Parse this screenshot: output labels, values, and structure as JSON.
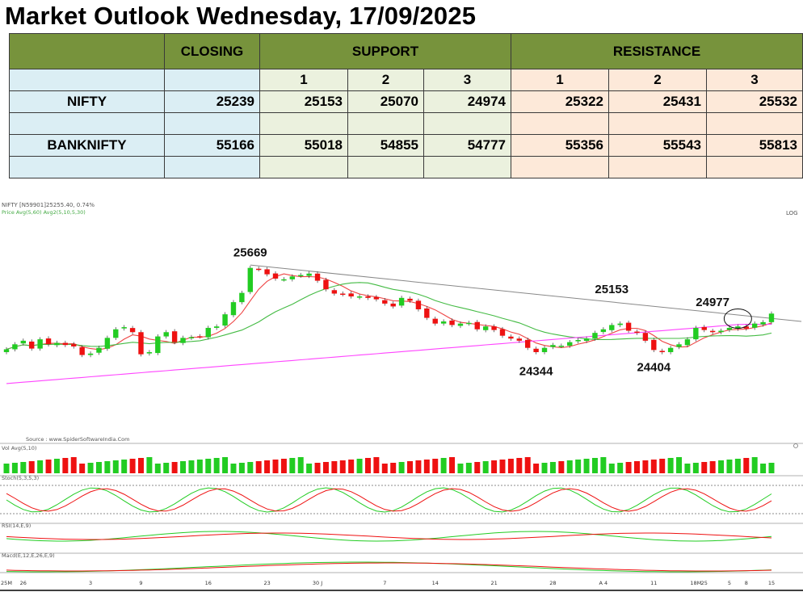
{
  "title": "Market Outlook Wednesday, 17/09/2025",
  "table": {
    "headers": {
      "closing": "CLOSING",
      "support": "SUPPORT",
      "resistance": "RESISTANCE"
    },
    "levels": [
      "1",
      "2",
      "3",
      "1",
      "2",
      "3"
    ],
    "rows": [
      {
        "name": "NIFTY",
        "closing": "25239",
        "support": [
          "25153",
          "25070",
          "24974"
        ],
        "resistance": [
          "25322",
          "25431",
          "25532"
        ]
      },
      {
        "name": "BANKNIFTY",
        "closing": "55166",
        "support": [
          "55018",
          "54855",
          "54777"
        ],
        "resistance": [
          "55356",
          "55543",
          "55813"
        ]
      }
    ]
  },
  "chart": {
    "header_line1": "NIFTY [N59901]25255.40,  0.74%",
    "header_line2": "Price  Avg(5,60)  Avg2(5,10,5,30)",
    "log_label": "LOG",
    "source": "Source : www.SpiderSoftwareIndia.Com",
    "vol_label": "Vol Avg(5,10)",
    "stoch_label": "Stoch(5,3,5,3)",
    "rsi_label": "RSI(14,E,9)",
    "macd_label": "Macd(E,12,E,26,E,9)",
    "x_labels": [
      "25M",
      "26",
      "3",
      "9",
      "16",
      "23",
      "30 J",
      "7",
      "14",
      "21",
      "28",
      "A  4",
      "11",
      "18M",
      "25",
      "5",
      "8",
      "15"
    ],
    "annotations": [
      "25669",
      "24344",
      "25153",
      "24404",
      "24977"
    ],
    "colors": {
      "up": "#22cc22",
      "down": "#ee1111",
      "ma_short": "#ee4444",
      "ma_mid": "#44bb44",
      "ma_long": "#ff44ff",
      "trendline": "#888888"
    }
  },
  "chart_data": {
    "type": "candlestick",
    "title": "NIFTY",
    "annotated_levels": {
      "high_jun": 25669,
      "low_aug": 24344,
      "resistance": 25153,
      "low_sep": 24404,
      "recent": 24977
    },
    "close": [
      24460,
      24530,
      24580,
      24470,
      24600,
      24530,
      24550,
      24520,
      24500,
      24380,
      24400,
      24480,
      24620,
      24740,
      24770,
      24700,
      24390,
      24420,
      24640,
      24700,
      24560,
      24620,
      24630,
      24640,
      24760,
      24780,
      24950,
      25120,
      25250,
      25600,
      25580,
      25510,
      25450,
      25440,
      25480,
      25500,
      25520,
      25420,
      25300,
      25240,
      25230,
      25200,
      25200,
      25180,
      25160,
      25100,
      25060,
      25180,
      25140,
      25020,
      24900,
      24820,
      24850,
      24800,
      24820,
      24830,
      24740,
      24780,
      24730,
      24650,
      24610,
      24580,
      24480,
      24420,
      24480,
      24520,
      24510,
      24560,
      24590,
      24610,
      24690,
      24740,
      24800,
      24820,
      24720,
      24690,
      24580,
      24450,
      24420,
      24480,
      24530,
      24600,
      24760,
      24730,
      24700,
      24720,
      24760,
      24780,
      24750,
      24820,
      24840,
      24960
    ]
  }
}
